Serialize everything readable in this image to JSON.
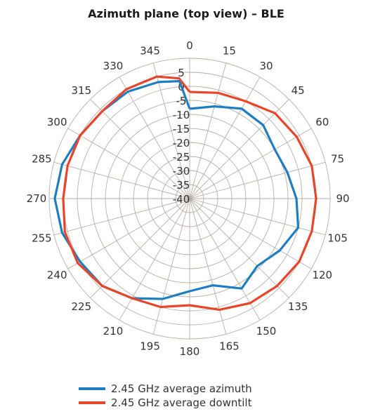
{
  "chart_data": {
    "type": "polar-line",
    "title": "Azimuth plane (top view) – BLE",
    "angles": [
      0,
      15,
      30,
      45,
      60,
      75,
      90,
      105,
      120,
      135,
      150,
      165,
      180,
      195,
      210,
      225,
      240,
      255,
      270,
      285,
      300,
      315,
      330,
      345
    ],
    "angle_labels": [
      "0",
      "15",
      "30",
      "45",
      "60",
      "75",
      "90",
      "105",
      "120",
      "135",
      "150",
      "165",
      "180",
      "195",
      "210",
      "225",
      "240",
      "255",
      "270",
      "285",
      "300",
      "315",
      "330",
      "345"
    ],
    "radial_ticks": [
      5,
      0,
      -5,
      -10,
      -15,
      -20,
      -25,
      -30,
      -35,
      -40
    ],
    "radial_tick_labels": [
      "5",
      "0",
      "-5",
      "-10",
      "-15",
      "-20",
      "-25",
      "-30",
      "-35",
      "-40"
    ],
    "rlim": [
      -40,
      10
    ],
    "direction": "clockwise",
    "zero_location": "top",
    "legend_position": "bottom",
    "series": [
      {
        "name": "2.45 GHz average azimuth",
        "color": "#1f7ec1",
        "angles": [
          0,
          15,
          30,
          45,
          60,
          75,
          90,
          105,
          120,
          135,
          150,
          165,
          180,
          195,
          210,
          225,
          240,
          255,
          270,
          285,
          300,
          315,
          330,
          345,
          355
        ],
        "values": [
          -8,
          -6,
          -3,
          -3,
          -5,
          -4,
          -2,
          0,
          -3,
          -6,
          -3,
          -8,
          -7,
          -3,
          1,
          4,
          5,
          7,
          8,
          7,
          5,
          4,
          4,
          3,
          2
        ]
      },
      {
        "name": "2.45 GHz average downtilt",
        "color": "#e8462a",
        "angles": [
          0,
          15,
          30,
          45,
          60,
          75,
          90,
          105,
          120,
          135,
          150,
          165,
          180,
          195,
          210,
          225,
          240,
          255,
          270,
          285,
          300,
          315,
          330,
          345,
          355
        ],
        "values": [
          -2,
          -1,
          0,
          3,
          4,
          5,
          5,
          5,
          5,
          4,
          3,
          1,
          -2,
          0,
          1,
          4,
          6,
          6,
          5,
          5,
          5,
          4,
          5,
          5,
          3
        ]
      }
    ]
  }
}
